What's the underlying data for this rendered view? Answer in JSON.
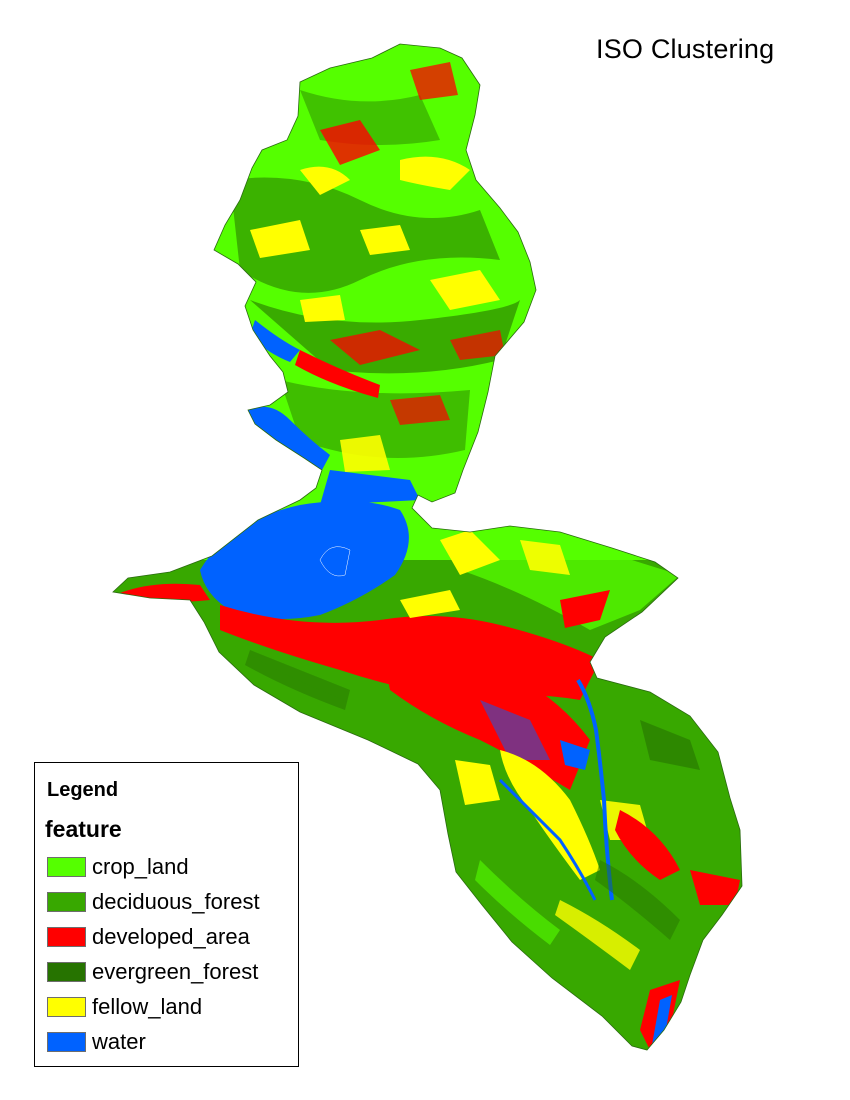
{
  "map": {
    "title": "ISO Clustering"
  },
  "legend": {
    "title": "Legend",
    "field": "feature",
    "items": [
      {
        "label": "crop_land",
        "color": "#55ff00"
      },
      {
        "label": "deciduous_forest",
        "color": "#38a800"
      },
      {
        "label": "developed_area",
        "color": "#ff0000"
      },
      {
        "label": "evergreen_forest",
        "color": "#267300"
      },
      {
        "label": "fellow_land",
        "color": "#ffff00"
      },
      {
        "label": "water",
        "color": "#0062ff"
      }
    ]
  }
}
